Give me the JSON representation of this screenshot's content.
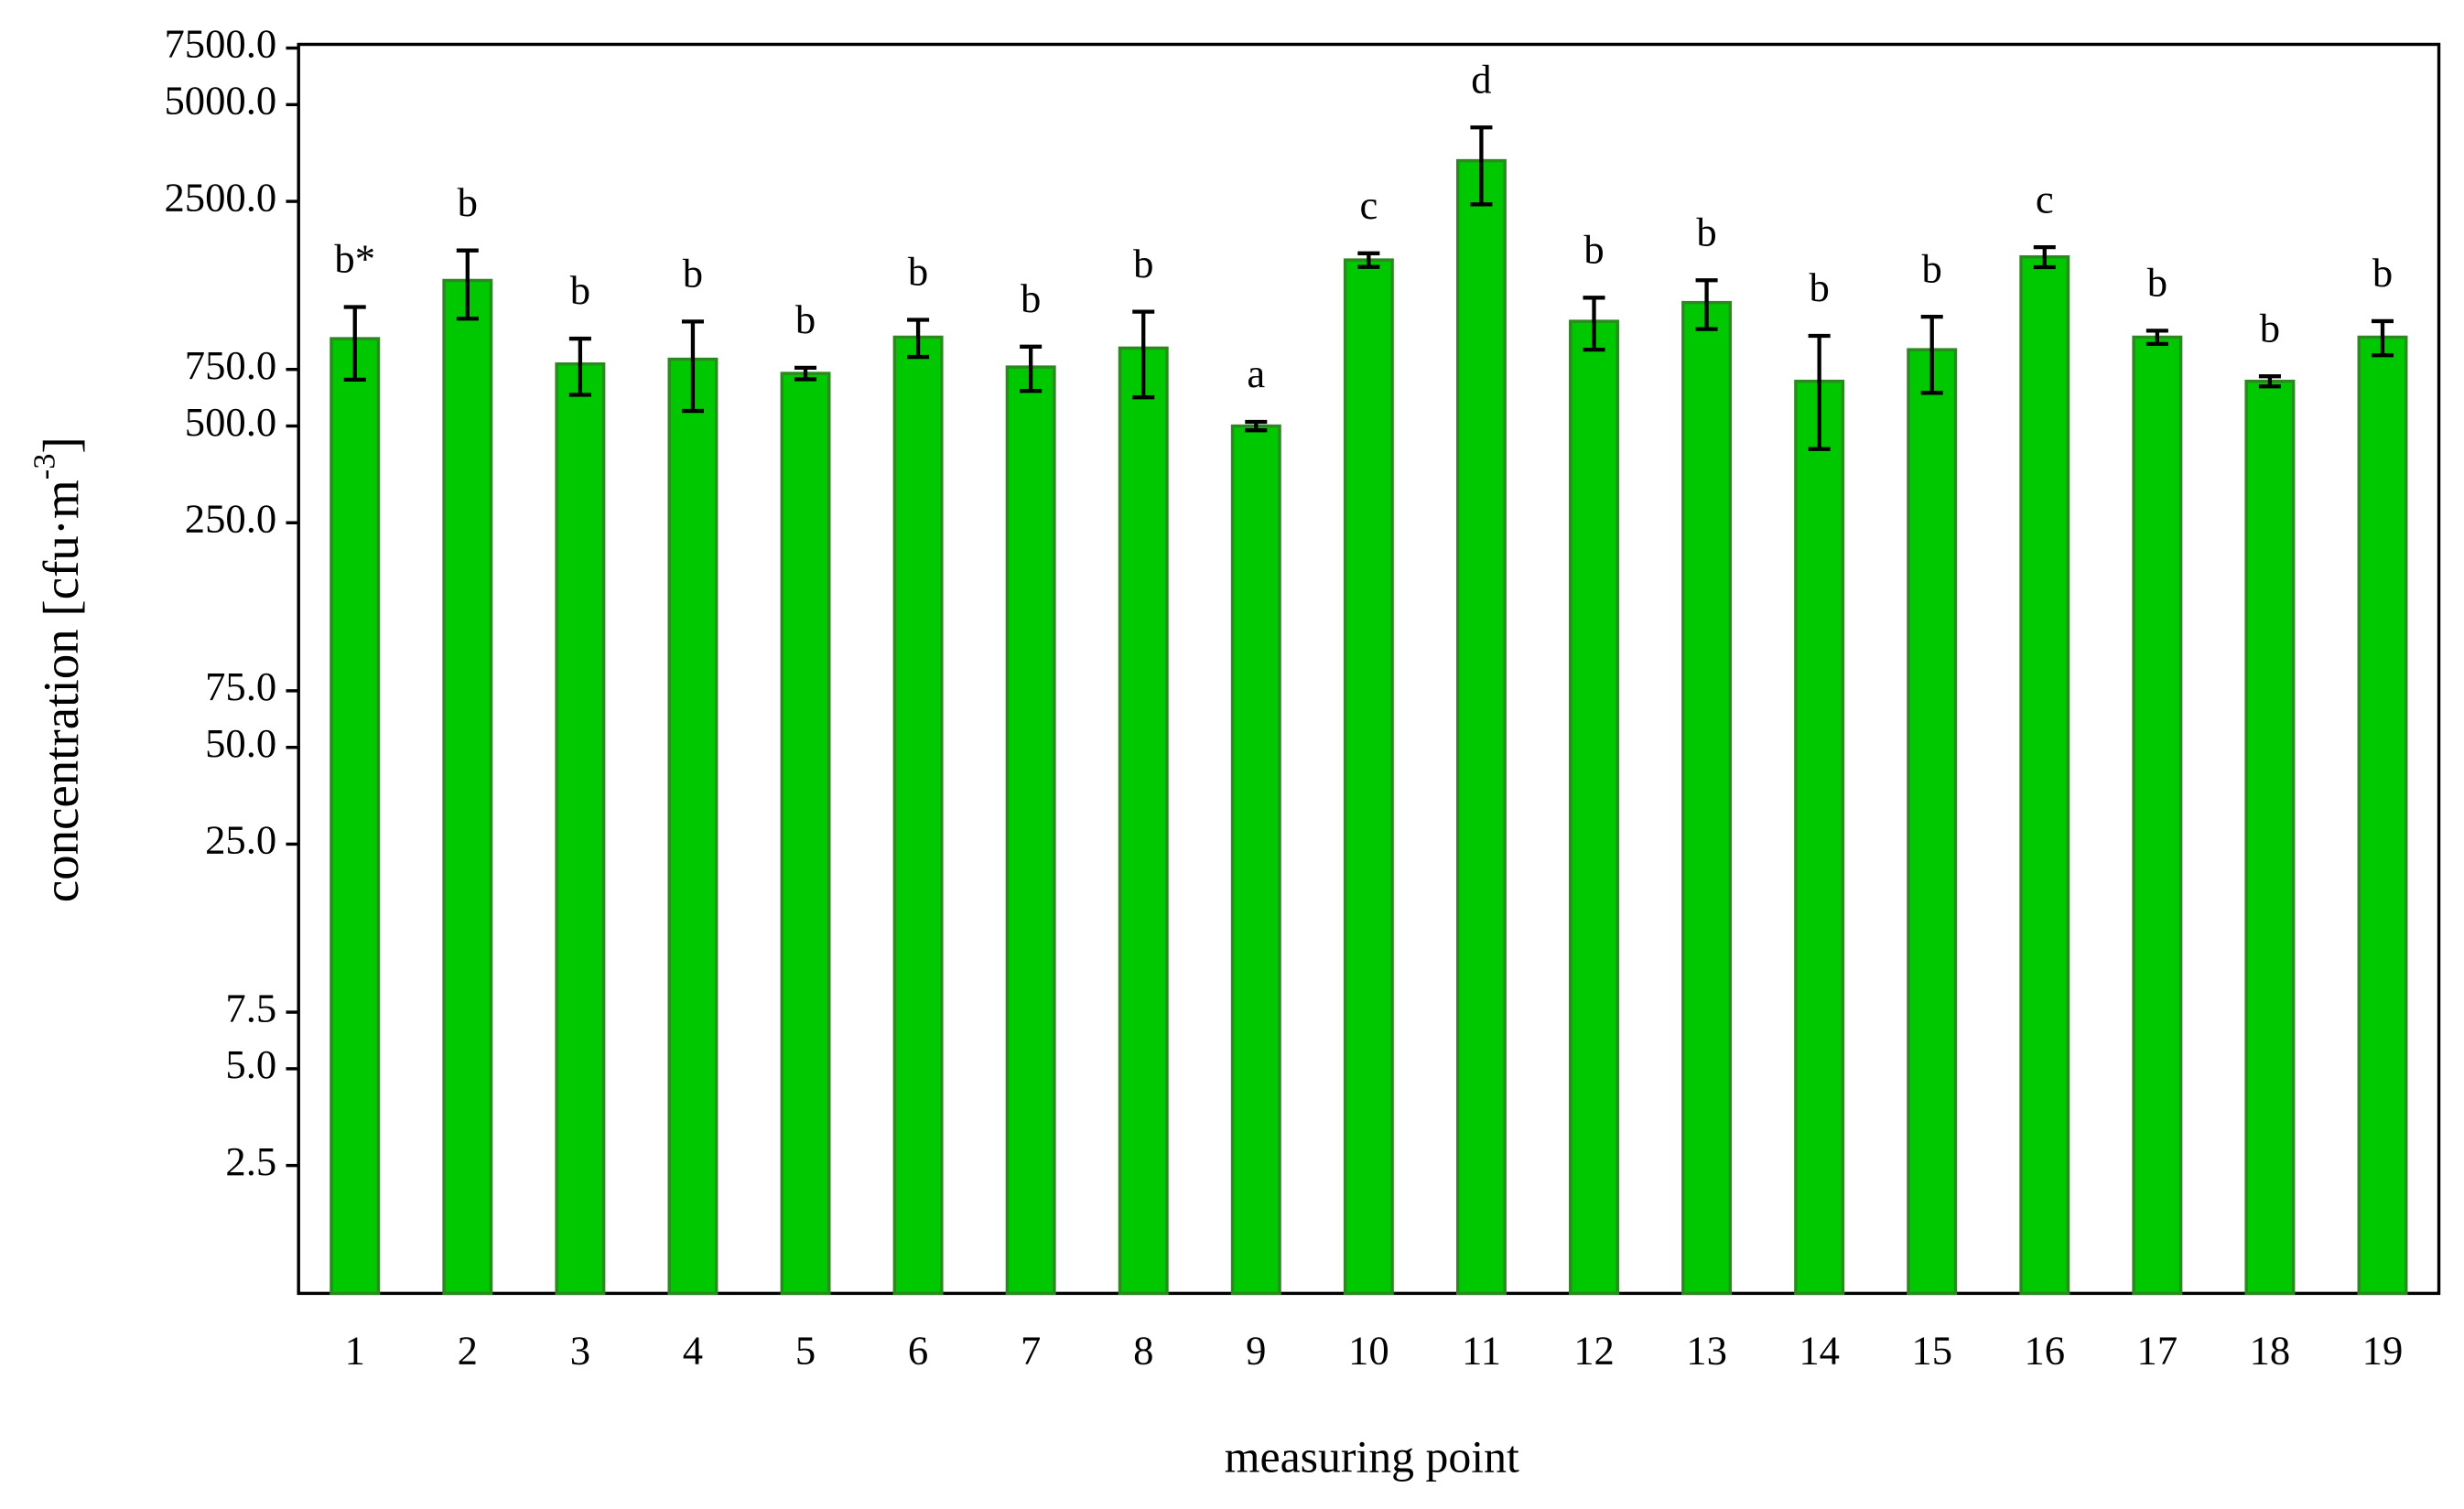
{
  "chart_data": {
    "type": "bar",
    "xlabel": "measuring point",
    "ylabel": "concentration [cfu·m",
    "ylabel_superscript": "-3",
    "ylabel_end": "]",
    "categories": [
      "1",
      "2",
      "3",
      "4",
      "5",
      "6",
      "7",
      "8",
      "9",
      "10",
      "11",
      "12",
      "13",
      "14",
      "15",
      "16",
      "17",
      "18",
      "19"
    ],
    "values": [
      935,
      1419,
      780,
      807,
      729,
      945,
      763,
      874,
      500,
      1643,
      3347,
      1059,
      1211,
      689,
      864,
      1680,
      945,
      689,
      945
    ],
    "errors": [
      238,
      340,
      155,
      250,
      30,
      125,
      120,
      260,
      15,
      80,
      900,
      195,
      210,
      265,
      230,
      120,
      45,
      25,
      115
    ],
    "annotations": [
      "b*",
      "b",
      "b",
      "b",
      "b",
      "b",
      "b",
      "b",
      "a",
      "c",
      "d",
      "b",
      "b",
      "b",
      "b",
      "c",
      "b",
      "b",
      "b"
    ],
    "color": "#00c800",
    "edge_color": "#2a8a1f",
    "log_scale": true,
    "ylim": [
      1,
      7700
    ],
    "yticks": [
      2.5,
      {
        "value": 5,
        "label": "5.0"
      },
      7.5,
      {
        "value": 25,
        "label": "25.0"
      },
      {
        "value": 50,
        "label": "50.0"
      },
      {
        "value": 75,
        "label": "75.0"
      },
      {
        "value": 250,
        "label": "250.0"
      },
      {
        "value": 500,
        "label": "500.0"
      },
      {
        "value": 750,
        "label": "750.0"
      },
      {
        "value": 2500,
        "label": "2500.0"
      },
      {
        "value": 5000,
        "label": "5000.0"
      },
      {
        "value": 7500,
        "label": "7500.0"
      }
    ],
    "grid": false
  }
}
